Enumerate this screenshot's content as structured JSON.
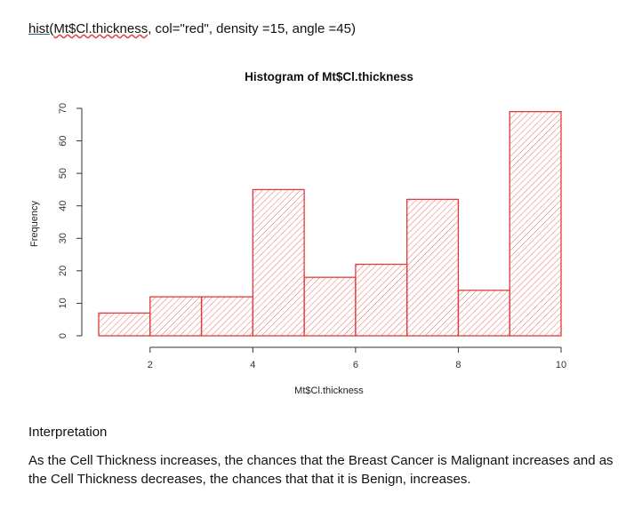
{
  "code_line": {
    "func": "hist(",
    "arg": "Mt$Cl.thickness",
    "rest": ", col=\"red\", density =15, angle =45)"
  },
  "chart_data": {
    "type": "bar",
    "title": "Histogram of Mt$Cl.thickness",
    "xlabel": "Mt$Cl.thickness",
    "ylabel": "Frequency",
    "bin_edges": [
      1,
      2,
      3,
      4,
      5,
      6,
      7,
      8,
      9,
      10
    ],
    "values": [
      7,
      12,
      12,
      45,
      18,
      22,
      42,
      14,
      69
    ],
    "xticks": [
      2,
      4,
      6,
      8,
      10
    ],
    "yticks": [
      0,
      10,
      20,
      30,
      40,
      50,
      60,
      70
    ],
    "xlim": [
      1,
      10
    ],
    "ylim": [
      0,
      70
    ],
    "color": "#e03c3c",
    "fill": "hatched 45 degrees",
    "grid": false
  },
  "interpretation": {
    "heading": "Interpretation",
    "text": "As the Cell Thickness increases, the chances that the Breast Cancer is Malignant increases and as the Cell Thickness decreases, the chances that that it is Benign, increases."
  }
}
